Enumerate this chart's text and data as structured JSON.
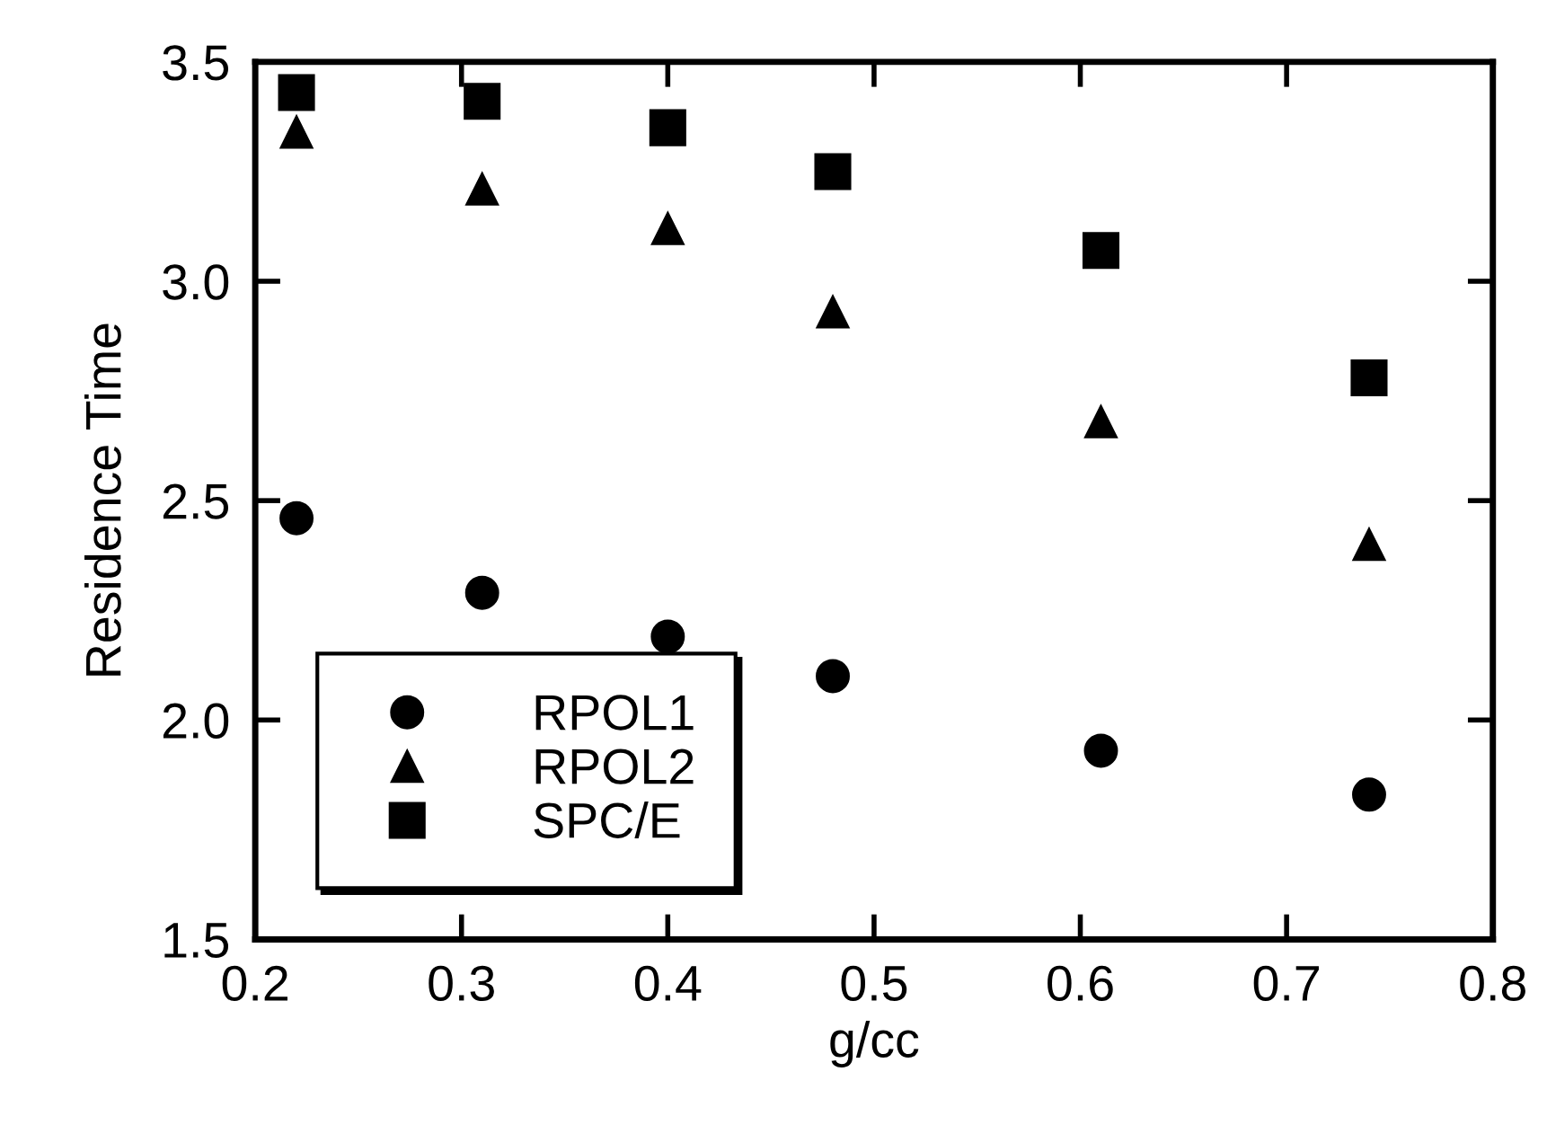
{
  "chart_data": {
    "type": "scatter",
    "xlabel": "g/cc",
    "ylabel": "Residence Time",
    "x": [
      0.22,
      0.31,
      0.4,
      0.48,
      0.61,
      0.74
    ],
    "series": [
      {
        "name": "RPOL1",
        "color": "#000000",
        "marker": "circle",
        "values": [
          2.46,
          2.29,
          2.19,
          2.1,
          1.93,
          1.83
        ]
      },
      {
        "name": "RPOL2",
        "color": "#000000",
        "marker": "triangle",
        "values": [
          3.34,
          3.21,
          3.12,
          2.93,
          2.68,
          2.4
        ]
      },
      {
        "name": "SPC/E",
        "color": "#000000",
        "marker": "square",
        "values": [
          3.43,
          3.41,
          3.35,
          3.25,
          3.07,
          2.78
        ]
      }
    ],
    "xlim": [
      0.2,
      0.8
    ],
    "xticks": [
      0.2,
      0.3,
      0.4,
      0.5,
      0.6,
      0.7,
      0.8
    ],
    "ylim": [
      1.5,
      3.5
    ],
    "yticks": [
      1.5,
      {
        "value": 2.0,
        "label": "2.0"
      },
      2.5,
      {
        "value": 3.0,
        "label": "3.0"
      },
      3.5
    ],
    "grid": false,
    "legend": "bottom left"
  }
}
